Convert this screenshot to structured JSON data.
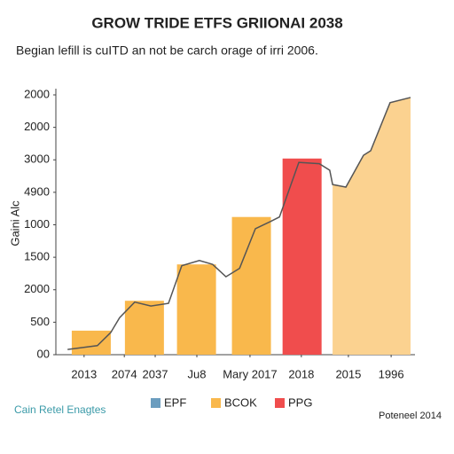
{
  "chart_data": {
    "type": "combo",
    "title": "GROW TRIDE ETFS GRIIONAI 2038",
    "subtitle": "Begian lefill is cuITD an not be carch orage of irri 2006.",
    "y_label": "Gaini Alc",
    "footer_left": "Cain Retel Enagtes",
    "footer_right": "Poteneel 2014",
    "xlim": [
      0,
      100
    ],
    "xticks": [
      {
        "value": 8.6,
        "label": "2013"
      },
      {
        "value": 19.8,
        "label": "2074"
      },
      {
        "value": 28.4,
        "label": "2037"
      },
      {
        "value": 40,
        "label": "Ju8"
      },
      {
        "value": 54.8,
        "label": "Mary 2017"
      },
      {
        "value": 69.1,
        "label": "2018"
      },
      {
        "value": 82.2,
        "label": "2015"
      },
      {
        "value": 94.1,
        "label": "1996"
      }
    ],
    "ylim": [
      0,
      4000
    ],
    "yticks": [
      {
        "value": 0,
        "label": "00"
      },
      500,
      {
        "value": 1000,
        "label": "2000"
      },
      1500,
      {
        "value": 2000,
        "label": "1000"
      },
      {
        "value": 2500,
        "label": "4900"
      },
      3000,
      {
        "value": 3500,
        "label": "2000"
      },
      {
        "value": 4000,
        "label": "2000"
      }
    ],
    "bars": [
      {
        "color": "#f9b84c",
        "x": [
          10.6,
          25.4,
          39.9,
          55.2
        ],
        "values": [
          370,
          830,
          1390,
          2120
        ]
      },
      {
        "color": "#f04d4d",
        "x": [
          69.3
        ],
        "values": [
          3020
        ]
      }
    ],
    "area": {
      "color": "#fbd290",
      "x": [
        77.8,
        81.5,
        86.4,
        88.4,
        93.8,
        99.5
      ],
      "values": [
        2620,
        2580,
        3070,
        3140,
        3880,
        3960
      ]
    },
    "line": {
      "color": "#555555",
      "x": [
        4.0,
        12.3,
        16.0,
        18.5,
        22.7,
        27.2,
        32.1,
        35.8,
        40.7,
        44.4,
        48.1,
        51.9,
        56.3,
        60.5,
        63.0,
        68.4,
        74.1,
        77.0,
        77.8,
        81.5,
        86.4,
        88.4,
        93.8,
        99.5
      ],
      "values": [
        80,
        140,
        340,
        570,
        810,
        750,
        790,
        1370,
        1450,
        1390,
        1200,
        1330,
        1940,
        2050,
        2120,
        2960,
        2940,
        2840,
        2620,
        2580,
        3070,
        3140,
        3880,
        3960
      ]
    },
    "legend": [
      {
        "name": "EPF",
        "color": "#6b9dbf"
      },
      {
        "name": "BCOK",
        "color": "#f9b84c"
      },
      {
        "name": "PPG",
        "color": "#f04d4d"
      }
    ]
  }
}
